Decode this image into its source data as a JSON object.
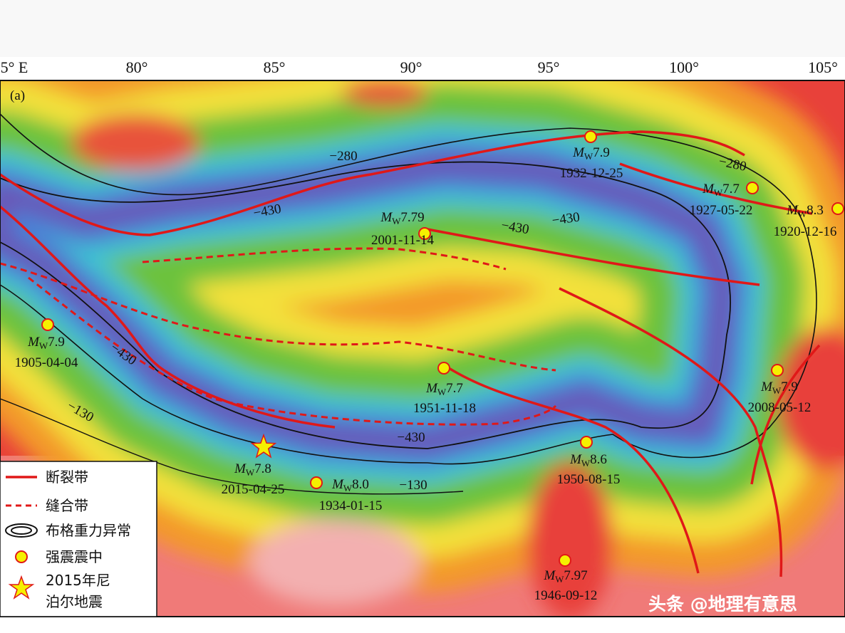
{
  "axis": {
    "longitudes": [
      "5° E",
      "80°",
      "85°",
      "90°",
      "95°",
      "100°",
      "105°"
    ]
  },
  "panel_label": "(a)",
  "contour_labels": [
    "−280",
    "−280",
    "−430",
    "−430",
    "−430",
    "−430",
    "−130",
    "−430",
    "−130"
  ],
  "earthquakes": [
    {
      "prefix": "M",
      "subscript": "W",
      "magnitude": "7.9",
      "date": "1932-12-25"
    },
    {
      "prefix": "M",
      "subscript": "W",
      "magnitude": "7.7",
      "date": "1927-05-22"
    },
    {
      "prefix": "M",
      "subscript": "W",
      "magnitude": "8.3",
      "date": "1920-12-16"
    },
    {
      "prefix": "M",
      "subscript": "W",
      "magnitude": "7.79",
      "date": "2001-11-14"
    },
    {
      "prefix": "M",
      "subscript": "W",
      "magnitude": "7.9",
      "date": "1905-04-04"
    },
    {
      "prefix": "M",
      "subscript": "W",
      "magnitude": "7.7",
      "date": "1951-11-18"
    },
    {
      "prefix": "M",
      "subscript": "W",
      "magnitude": "7.9",
      "date": "2008-05-12"
    },
    {
      "prefix": "M",
      "subscript": "W",
      "magnitude": "7.8",
      "date": "2015-04-25"
    },
    {
      "prefix": "M",
      "subscript": "W",
      "magnitude": "8.0",
      "date": "1934-01-15"
    },
    {
      "prefix": "M",
      "subscript": "W",
      "magnitude": "8.6",
      "date": "1950-08-15"
    },
    {
      "prefix": "M",
      "subscript": "W",
      "magnitude": "7.97",
      "date": "1946-09-12"
    }
  ],
  "legend": {
    "fault": "断裂带",
    "suture": "缝合带",
    "gravity": "布格重力异常",
    "epicenter": "强震震中",
    "nepal": [
      "2015年尼",
      "泊尔地震"
    ]
  },
  "watermark": "头条 @地理有意思"
}
